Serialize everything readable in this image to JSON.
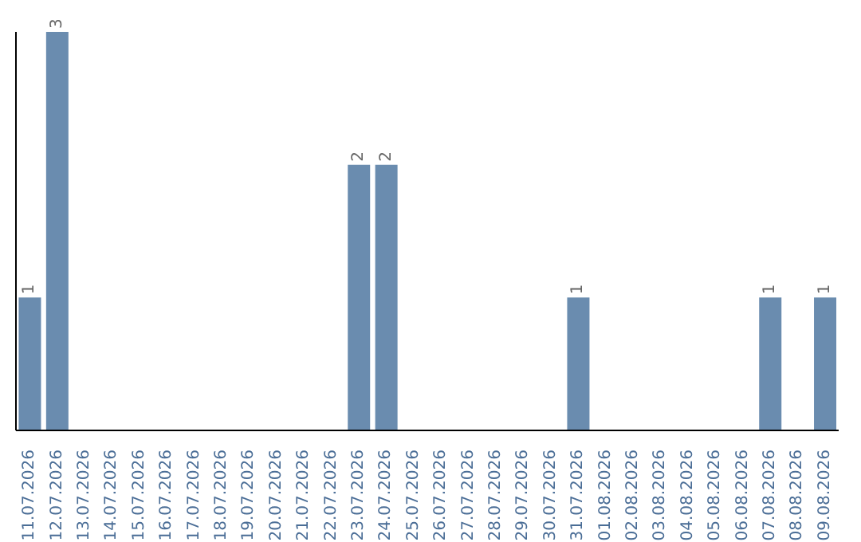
{
  "chart_data": {
    "type": "bar",
    "categories": [
      "11.07.2026",
      "12.07.2026",
      "13.07.2026",
      "14.07.2026",
      "15.07.2026",
      "16.07.2026",
      "17.07.2026",
      "18.07.2026",
      "19.07.2026",
      "20.07.2026",
      "21.07.2026",
      "22.07.2026",
      "23.07.2026",
      "24.07.2026",
      "25.07.2026",
      "26.07.2026",
      "27.07.2026",
      "28.07.2026",
      "29.07.2026",
      "30.07.2026",
      "31.07.2026",
      "01.08.2026",
      "02.08.2026",
      "03.08.2026",
      "04.08.2026",
      "05.08.2026",
      "06.08.2026",
      "07.08.2026",
      "08.08.2026",
      "09.08.2026"
    ],
    "values": [
      1,
      3,
      0,
      0,
      0,
      0,
      0,
      0,
      0,
      0,
      0,
      0,
      2,
      2,
      0,
      0,
      0,
      0,
      0,
      0,
      1,
      0,
      0,
      0,
      0,
      0,
      0,
      1,
      0,
      1
    ],
    "value_labels": [
      "1",
      "3",
      null,
      null,
      null,
      null,
      null,
      null,
      null,
      null,
      null,
      null,
      "2",
      "2",
      null,
      null,
      null,
      null,
      null,
      null,
      "1",
      null,
      null,
      null,
      null,
      null,
      null,
      "1",
      null,
      "1"
    ],
    "color": "#6a8caf",
    "ylim": [
      0,
      3
    ],
    "tick_labels": "x",
    "grid": false
  }
}
